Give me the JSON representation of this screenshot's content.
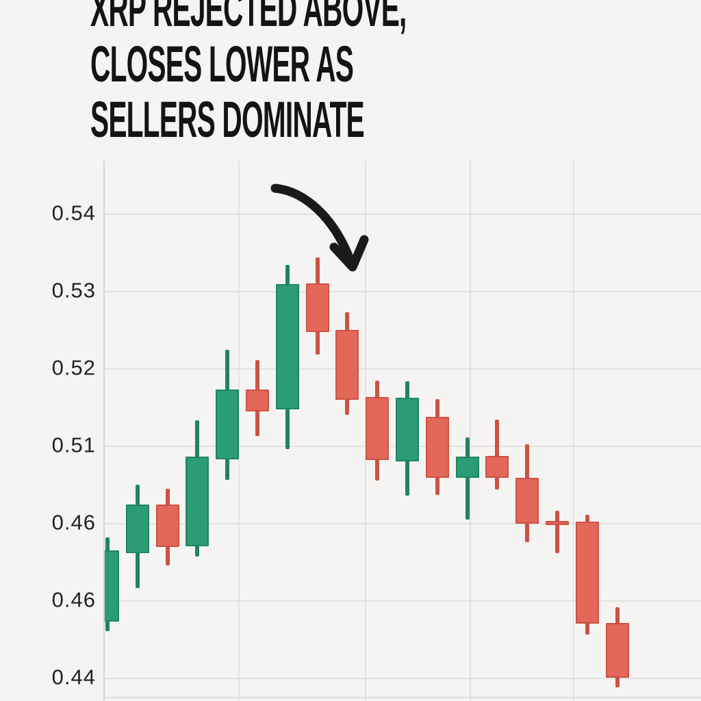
{
  "headline": {
    "lines": [
      "XRP REJECTED ABOVE,",
      "CLOSES LOWER AS",
      "SELLERS DOMINATE"
    ]
  },
  "chart_data": {
    "type": "candlestick",
    "title": "XRP REJECTED ABOVE, CLOSES LOWER AS SELLERS DOMINATE",
    "xlabel": "",
    "ylabel": "",
    "grid": true,
    "x_axis_labels": [],
    "y_axis_labels": [
      "0.54",
      "0.53",
      "0.52",
      "0.51",
      "0.46",
      "0.46",
      "0.44"
    ],
    "annotation": {
      "shape": "hand-drawn curved arrow",
      "points_at": "red rejection candles after the peak"
    },
    "colors": {
      "bullish_fill": "#2b9c75",
      "bullish_edge": "#1e8560",
      "bearish_fill": "#e2685a",
      "bearish_edge": "#cd5244",
      "background": "#f5f4f2",
      "grid": "#e3e2e0",
      "arrow": "#1a1a1a",
      "text": "#141414"
    },
    "candles": [
      {
        "direction": "up",
        "open": 0.4873,
        "high": 0.4981,
        "low": 0.486,
        "close": 0.4965
      },
      {
        "direction": "up",
        "open": 0.4961,
        "high": 0.505,
        "low": 0.4916,
        "close": 0.5024
      },
      {
        "direction": "down",
        "open": 0.5024,
        "high": 0.5044,
        "low": 0.4945,
        "close": 0.4969
      },
      {
        "direction": "up",
        "open": 0.497,
        "high": 0.5133,
        "low": 0.4957,
        "close": 0.5086
      },
      {
        "direction": "up",
        "open": 0.5082,
        "high": 0.5224,
        "low": 0.5056,
        "close": 0.5173
      },
      {
        "direction": "down",
        "open": 0.5173,
        "high": 0.5211,
        "low": 0.5112,
        "close": 0.5144
      },
      {
        "direction": "up",
        "open": 0.5147,
        "high": 0.5334,
        "low": 0.5096,
        "close": 0.5309
      },
      {
        "direction": "down",
        "open": 0.531,
        "high": 0.5343,
        "low": 0.5218,
        "close": 0.5247
      },
      {
        "direction": "down",
        "open": 0.525,
        "high": 0.5273,
        "low": 0.514,
        "close": 0.5159
      },
      {
        "direction": "down",
        "open": 0.5163,
        "high": 0.5184,
        "low": 0.5055,
        "close": 0.5081
      },
      {
        "direction": "up",
        "open": 0.508,
        "high": 0.5183,
        "low": 0.5035,
        "close": 0.5162
      },
      {
        "direction": "down",
        "open": 0.5137,
        "high": 0.516,
        "low": 0.5036,
        "close": 0.5058
      },
      {
        "direction": "up",
        "open": 0.5058,
        "high": 0.5111,
        "low": 0.5004,
        "close": 0.5086
      },
      {
        "direction": "down",
        "open": 0.5087,
        "high": 0.5134,
        "low": 0.5043,
        "close": 0.5058
      },
      {
        "direction": "down",
        "open": 0.5058,
        "high": 0.5102,
        "low": 0.4975,
        "close": 0.4999
      },
      {
        "direction": "down",
        "open": 0.5003,
        "high": 0.5016,
        "low": 0.4961,
        "close": 0.4997
      },
      {
        "direction": "down",
        "open": 0.5002,
        "high": 0.5011,
        "low": 0.4856,
        "close": 0.487
      },
      {
        "direction": "down",
        "open": 0.4871,
        "high": 0.4891,
        "low": 0.4788,
        "close": 0.48
      }
    ]
  }
}
